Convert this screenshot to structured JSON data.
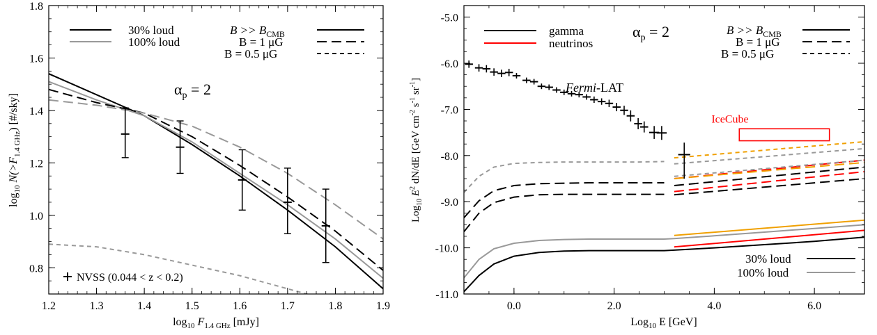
{
  "chart_data": [
    {
      "type": "line",
      "xlabel": {
        "pre": "log",
        "sub1": "10",
        "mid": " F",
        "sub2": "1.4 GHz",
        "post": " [mJy]"
      },
      "ylabel": {
        "pre": "log",
        "sub1": "10",
        "mid": " N(>F",
        "sub2": "1.4 GHz",
        "post": ") [#/sky]"
      },
      "xlim": [
        1.2,
        1.9
      ],
      "ylim": [
        0.7,
        1.8
      ],
      "xticks": [
        "1.2",
        "1.3",
        "1.4",
        "1.5",
        "1.6",
        "1.7",
        "1.8",
        "1.9"
      ],
      "yticks": [
        "0.8",
        "1.0",
        "1.2",
        "1.4",
        "1.6",
        "1.8"
      ],
      "annotation": {
        "text": "α",
        "sub": "p",
        "rest": " = 2"
      },
      "legend_left": [
        {
          "label": "30% loud",
          "color": "#000000"
        },
        {
          "label": "100% loud",
          "color": "#999999"
        }
      ],
      "legend_right": [
        {
          "label_pre": "B >> B",
          "label_sub": "CMB",
          "dash": "solid"
        },
        {
          "label_pre": "B = 1 μG",
          "label_sub": "",
          "dash": "long-dash"
        },
        {
          "label_pre": "B = 0.5 μG",
          "label_sub": "",
          "dash": "short-dash"
        }
      ],
      "data_legend": "NVSS (0.044 < z < 0.2)",
      "series": [
        {
          "color": "#000000",
          "dash": "solid",
          "x": [
            1.2,
            1.3,
            1.4,
            1.5,
            1.6,
            1.7,
            1.8,
            1.9
          ],
          "y": [
            1.54,
            1.46,
            1.38,
            1.27,
            1.15,
            1.02,
            0.88,
            0.72
          ]
        },
        {
          "color": "#999999",
          "dash": "solid",
          "x": [
            1.2,
            1.3,
            1.4,
            1.5,
            1.6,
            1.7,
            1.8,
            1.9
          ],
          "y": [
            1.51,
            1.44,
            1.38,
            1.28,
            1.16,
            1.04,
            0.91,
            0.76
          ]
        },
        {
          "color": "#000000",
          "dash": "long-dash",
          "x": [
            1.2,
            1.3,
            1.4,
            1.5,
            1.6,
            1.7,
            1.8,
            1.9
          ],
          "y": [
            1.48,
            1.43,
            1.39,
            1.3,
            1.19,
            1.07,
            0.94,
            0.79
          ]
        },
        {
          "color": "#999999",
          "dash": "long-dash",
          "x": [
            1.2,
            1.3,
            1.4,
            1.5,
            1.6,
            1.7,
            1.8,
            1.9
          ],
          "y": [
            1.44,
            1.42,
            1.39,
            1.34,
            1.26,
            1.16,
            1.04,
            0.91
          ]
        },
        {
          "color": "#999999",
          "dash": "short-dash",
          "x": [
            1.2,
            1.3,
            1.4,
            1.5,
            1.6,
            1.7,
            1.8
          ],
          "y": [
            0.89,
            0.88,
            0.85,
            0.81,
            0.77,
            0.72,
            0.67
          ]
        }
      ],
      "data_points": [
        {
          "x": 1.36,
          "y": 1.31,
          "ylo": 1.22,
          "yhi": 1.41
        },
        {
          "x": 1.475,
          "y": 1.26,
          "ylo": 1.16,
          "yhi": 1.36
        },
        {
          "x": 1.605,
          "y": 1.135,
          "ylo": 1.02,
          "yhi": 1.25
        },
        {
          "x": 1.7,
          "y": 1.05,
          "ylo": 0.93,
          "yhi": 1.18
        },
        {
          "x": 1.78,
          "y": 0.96,
          "ylo": 0.82,
          "yhi": 1.1
        }
      ]
    },
    {
      "type": "line",
      "xlabel": {
        "pre": "Log",
        "sub1": "10",
        "mid": " E [GeV]",
        "sub2": "",
        "post": ""
      },
      "ylabel": {
        "pre": "Log",
        "sub1": "10",
        "mid": " E",
        "sup": "2",
        "rest": " dN/dE [GeV cm",
        "sup2": "-2",
        "rest2": " s",
        "sup3": "-1",
        "rest3": " sr",
        "sup4": "-1",
        "rest4": "]"
      },
      "xlim": [
        -1.0,
        7.0
      ],
      "ylim": [
        -11.0,
        -4.75
      ],
      "xticks": [
        "0.0",
        "2.0",
        "4.0",
        "6.0"
      ],
      "yticks": [
        "-5.0",
        "-6.0",
        "-7.0",
        "-8.0",
        "-9.0",
        "-10.0",
        "-11.0"
      ],
      "annotation": {
        "text": "α",
        "sub": "p",
        "rest": " = 2"
      },
      "legend_left": [
        {
          "label": "gamma",
          "color": "#000000"
        },
        {
          "label": "neutrinos",
          "color": "#ff0000"
        }
      ],
      "legend_right": [
        {
          "label_pre": "B >> B",
          "label_sub": "CMB",
          "dash": "solid"
        },
        {
          "label_pre": "B = 1 μG",
          "label_sub": "",
          "dash": "long-dash"
        },
        {
          "label_pre": "B = 0.5 μG",
          "label_sub": "",
          "dash": "short-dash"
        }
      ],
      "legend_bottom": [
        {
          "label": "30% loud",
          "color": "#000000"
        },
        {
          "label": "100% loud",
          "color": "#999999"
        }
      ],
      "fermi_label": {
        "italic": "Fermi",
        "rest": "-LAT"
      },
      "icecube": {
        "label": "IceCube",
        "x0": 4.5,
        "x1": 6.3,
        "y0": -7.68,
        "y1": -7.42,
        "color": "#ff0000"
      },
      "series": [
        {
          "color": "#000000",
          "dash": "solid",
          "x": [
            -1.0,
            -0.7,
            -0.4,
            0.0,
            0.5,
            1.0,
            1.5,
            2.0,
            2.5,
            3.0,
            3.2,
            4.0,
            5.0,
            6.0,
            7.0
          ],
          "y": [
            -10.95,
            -10.6,
            -10.35,
            -10.18,
            -10.1,
            -10.07,
            -10.06,
            -10.06,
            -10.06,
            -10.06,
            -10.05,
            -10.0,
            -9.93,
            -9.86,
            -9.77
          ]
        },
        {
          "color": "#999999",
          "dash": "solid",
          "x": [
            -1.0,
            -0.7,
            -0.4,
            0.0,
            0.5,
            1.0,
            1.5,
            2.0,
            2.5,
            3.0,
            3.2,
            4.0,
            5.0,
            6.0,
            7.0
          ],
          "y": [
            -10.65,
            -10.25,
            -10.02,
            -9.9,
            -9.84,
            -9.82,
            -9.81,
            -9.81,
            -9.81,
            -9.81,
            -9.8,
            -9.74,
            -9.66,
            -9.58,
            -9.5
          ]
        },
        {
          "color": "#000000",
          "dash": "long-dash",
          "x": [
            -1.0,
            -0.7,
            -0.4,
            0.0,
            0.5,
            1.0,
            1.5,
            2.0,
            2.5,
            3.0
          ],
          "y": [
            -9.65,
            -9.25,
            -9.02,
            -8.9,
            -8.85,
            -8.84,
            -8.84,
            -8.84,
            -8.84,
            -8.84
          ]
        },
        {
          "color": "#000000",
          "dash": "long-dash",
          "x": [
            -1.0,
            -0.7,
            -0.4,
            0.0,
            0.5,
            1.0,
            1.5,
            2.0,
            2.5,
            3.0
          ],
          "y": [
            -9.35,
            -8.98,
            -8.76,
            -8.65,
            -8.61,
            -8.6,
            -8.59,
            -8.59,
            -8.59,
            -8.59
          ]
        },
        {
          "color": "#999999",
          "dash": "short-dash",
          "x": [
            -1.0,
            -0.7,
            -0.4,
            0.0,
            0.5,
            1.0,
            1.5,
            2.0,
            2.5,
            3.0
          ],
          "y": [
            -8.8,
            -8.45,
            -8.25,
            -8.17,
            -8.15,
            -8.14,
            -8.14,
            -8.14,
            -8.14,
            -8.13
          ]
        },
        {
          "color": "#000000",
          "dash": "long-dash",
          "x": [
            3.2,
            7.0
          ],
          "y": [
            -8.85,
            -8.5
          ]
        },
        {
          "color": "#000000",
          "dash": "long-dash",
          "x": [
            3.2,
            7.0
          ],
          "y": [
            -8.65,
            -8.25
          ]
        },
        {
          "color": "#ff0000",
          "dash": "long-dash",
          "x": [
            3.2,
            7.0
          ],
          "y": [
            -8.78,
            -8.35
          ]
        },
        {
          "color": "#ff0000",
          "dash": "long-dash",
          "x": [
            3.2,
            7.0
          ],
          "y": [
            -8.5,
            -8.1
          ]
        },
        {
          "color": "#999999",
          "dash": "short-dash",
          "x": [
            3.2,
            7.0
          ],
          "y": [
            -8.45,
            -8.1
          ]
        },
        {
          "color": "#999999",
          "dash": "short-dash",
          "x": [
            3.2,
            7.0
          ],
          "y": [
            -8.18,
            -7.85
          ]
        },
        {
          "color": "#f0a000",
          "dash": "short-dash",
          "x": [
            3.2,
            7.0
          ],
          "y": [
            -8.05,
            -7.7
          ]
        },
        {
          "color": "#f0a000",
          "dash": "long-dash",
          "x": [
            3.2,
            7.0
          ],
          "y": [
            -8.5,
            -8.15
          ]
        },
        {
          "color": "#ff0000",
          "dash": "solid",
          "x": [
            3.2,
            7.0
          ],
          "y": [
            -9.98,
            -9.62
          ]
        },
        {
          "color": "#f0a000",
          "dash": "solid",
          "x": [
            3.2,
            7.0
          ],
          "y": [
            -9.73,
            -9.4
          ]
        }
      ],
      "data_points": [
        {
          "x": -0.9,
          "y": -6.02,
          "ylo": -6.1,
          "yhi": -5.94,
          "xerr": 0.08
        },
        {
          "x": -0.7,
          "y": -6.1,
          "ylo": -6.18,
          "yhi": -6.02,
          "xerr": 0.08
        },
        {
          "x": -0.55,
          "y": -6.12,
          "ylo": -6.2,
          "yhi": -6.04,
          "xerr": 0.08
        },
        {
          "x": -0.4,
          "y": -6.19,
          "ylo": -6.27,
          "yhi": -6.11,
          "xerr": 0.08
        },
        {
          "x": -0.25,
          "y": -6.22,
          "ylo": -6.3,
          "yhi": -6.14,
          "xerr": 0.08
        },
        {
          "x": -0.1,
          "y": -6.2,
          "ylo": -6.28,
          "yhi": -6.12,
          "xerr": 0.08
        },
        {
          "x": 0.05,
          "y": -6.27,
          "ylo": -6.33,
          "yhi": -6.21,
          "xerr": 0.08
        },
        {
          "x": 0.25,
          "y": -6.37,
          "ylo": -6.43,
          "yhi": -6.31,
          "xerr": 0.08
        },
        {
          "x": 0.4,
          "y": -6.4,
          "ylo": -6.46,
          "yhi": -6.34,
          "xerr": 0.08
        },
        {
          "x": 0.55,
          "y": -6.5,
          "ylo": -6.56,
          "yhi": -6.44,
          "xerr": 0.08
        },
        {
          "x": 0.7,
          "y": -6.52,
          "ylo": -6.58,
          "yhi": -6.46,
          "xerr": 0.08
        },
        {
          "x": 0.85,
          "y": -6.58,
          "ylo": -6.64,
          "yhi": -6.52,
          "xerr": 0.08
        },
        {
          "x": 1.0,
          "y": -6.63,
          "ylo": -6.69,
          "yhi": -6.57,
          "xerr": 0.08
        },
        {
          "x": 1.15,
          "y": -6.66,
          "ylo": -6.72,
          "yhi": -6.6,
          "xerr": 0.08
        },
        {
          "x": 1.3,
          "y": -6.68,
          "ylo": -6.74,
          "yhi": -6.62,
          "xerr": 0.08
        },
        {
          "x": 1.45,
          "y": -6.73,
          "ylo": -6.79,
          "yhi": -6.67,
          "xerr": 0.08
        },
        {
          "x": 1.6,
          "y": -6.79,
          "ylo": -6.86,
          "yhi": -6.72,
          "xerr": 0.08
        },
        {
          "x": 1.75,
          "y": -6.83,
          "ylo": -6.9,
          "yhi": -6.76,
          "xerr": 0.08
        },
        {
          "x": 1.9,
          "y": -6.87,
          "ylo": -6.95,
          "yhi": -6.79,
          "xerr": 0.08
        },
        {
          "x": 2.05,
          "y": -6.95,
          "ylo": -7.04,
          "yhi": -6.86,
          "xerr": 0.08
        },
        {
          "x": 2.2,
          "y": -7.02,
          "ylo": -7.12,
          "yhi": -6.92,
          "xerr": 0.08
        },
        {
          "x": 2.33,
          "y": -7.14,
          "ylo": -7.26,
          "yhi": -7.02,
          "xerr": 0.08
        },
        {
          "x": 2.48,
          "y": -7.31,
          "ylo": -7.43,
          "yhi": -7.19,
          "xerr": 0.08
        },
        {
          "x": 2.6,
          "y": -7.38,
          "ylo": -7.5,
          "yhi": -7.26,
          "xerr": 0.08
        },
        {
          "x": 2.8,
          "y": -7.5,
          "ylo": -7.64,
          "yhi": -7.36,
          "xerr": 0.1
        },
        {
          "x": 2.95,
          "y": -7.51,
          "ylo": -7.66,
          "yhi": -7.36,
          "xerr": 0.1
        },
        {
          "x": 3.4,
          "y": -7.98,
          "ylo": -8.5,
          "yhi": -7.72,
          "xerr": 0.12
        }
      ]
    }
  ]
}
